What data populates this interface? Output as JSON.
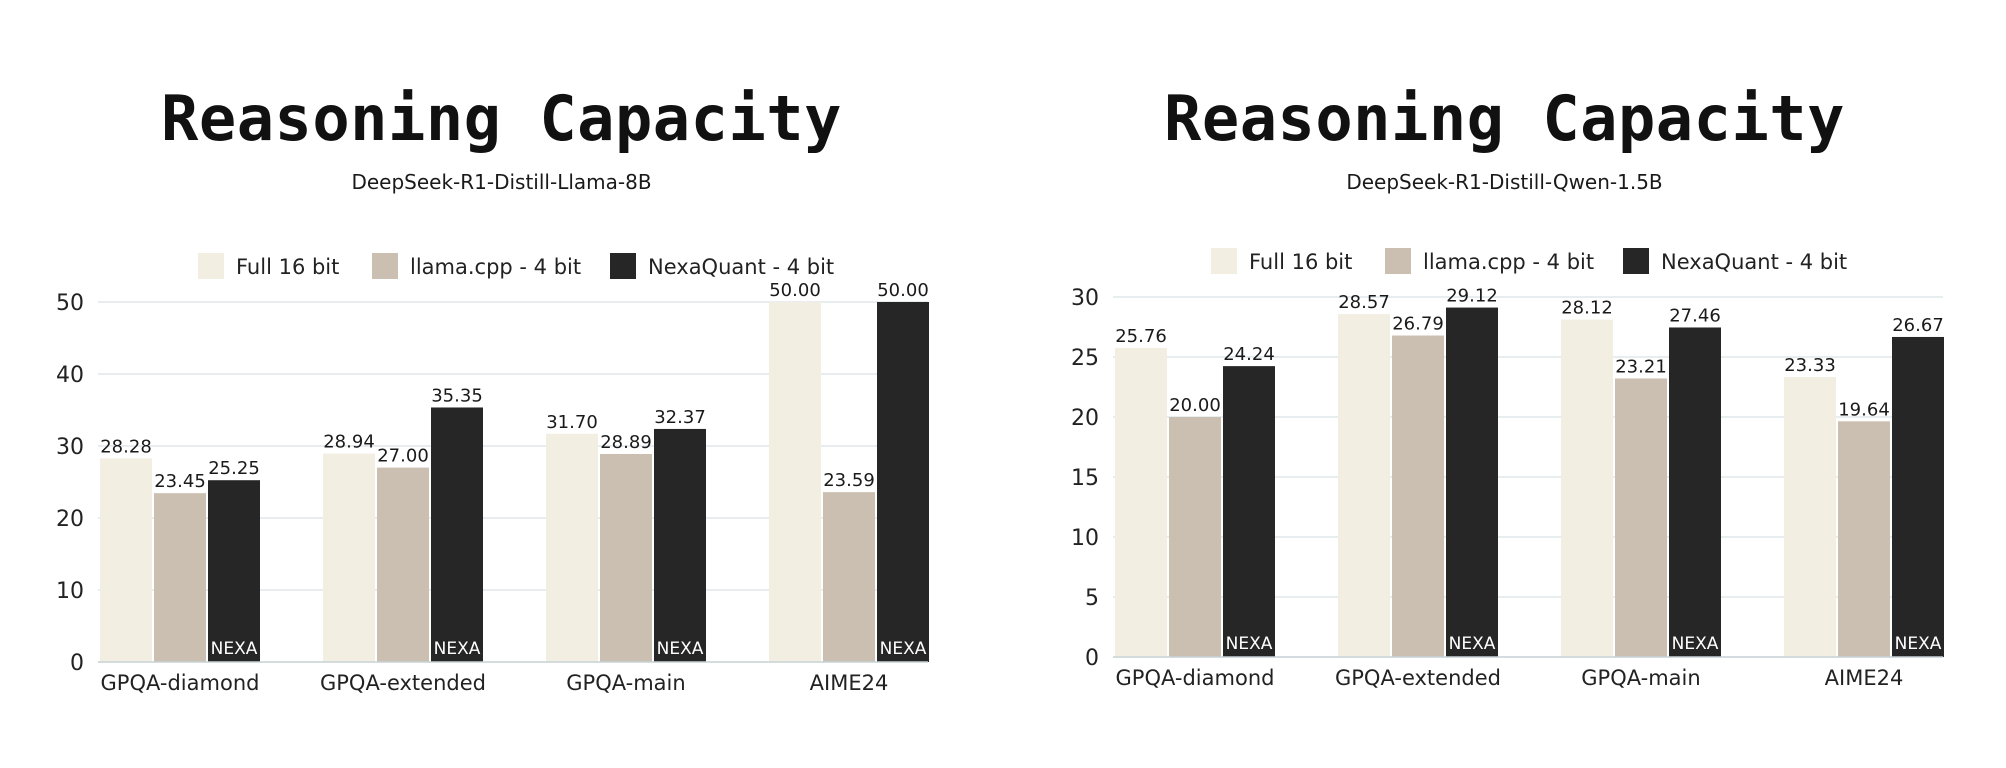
{
  "colors": {
    "full": "#f2eee2",
    "llama": "#cbbfb1",
    "nexa": "#262626",
    "grid": "#d9e2e6"
  },
  "nexa_badge": "NEXA",
  "legend": [
    "Full 16 bit",
    "llama.cpp - 4 bit",
    "NexaQuant - 4 bit"
  ],
  "chart_data": [
    {
      "type": "bar",
      "title": "Reasoning Capacity",
      "subtitle": "DeepSeek-R1-Distill-Llama-8B",
      "categories": [
        "GPQA-diamond",
        "GPQA-extended",
        "GPQA-main",
        "AIME24"
      ],
      "series": [
        {
          "name": "Full 16 bit",
          "values": [
            28.28,
            28.94,
            31.7,
            50.0
          ]
        },
        {
          "name": "llama.cpp - 4 bit",
          "values": [
            23.45,
            27.0,
            28.89,
            23.59
          ]
        },
        {
          "name": "NexaQuant - 4 bit",
          "values": [
            25.25,
            35.35,
            32.37,
            50.0
          ]
        }
      ],
      "ylim": [
        0,
        50
      ],
      "yticks": [
        0,
        10,
        20,
        30,
        40,
        50
      ],
      "grid": true,
      "legend_position": "top"
    },
    {
      "type": "bar",
      "title": "Reasoning Capacity",
      "subtitle": "DeepSeek-R1-Distill-Qwen-1.5B",
      "categories": [
        "GPQA-diamond",
        "GPQA-extended",
        "GPQA-main",
        "AIME24"
      ],
      "series": [
        {
          "name": "Full 16 bit",
          "values": [
            25.76,
            28.57,
            28.12,
            23.33
          ]
        },
        {
          "name": "llama.cpp - 4 bit",
          "values": [
            20.0,
            26.79,
            23.21,
            19.64
          ]
        },
        {
          "name": "NexaQuant - 4 bit",
          "values": [
            24.24,
            29.12,
            27.46,
            26.67
          ]
        }
      ],
      "ylim": [
        0,
        30
      ],
      "yticks": [
        0,
        5,
        10,
        15,
        20,
        25,
        30
      ],
      "grid": true,
      "legend_position": "top"
    }
  ]
}
